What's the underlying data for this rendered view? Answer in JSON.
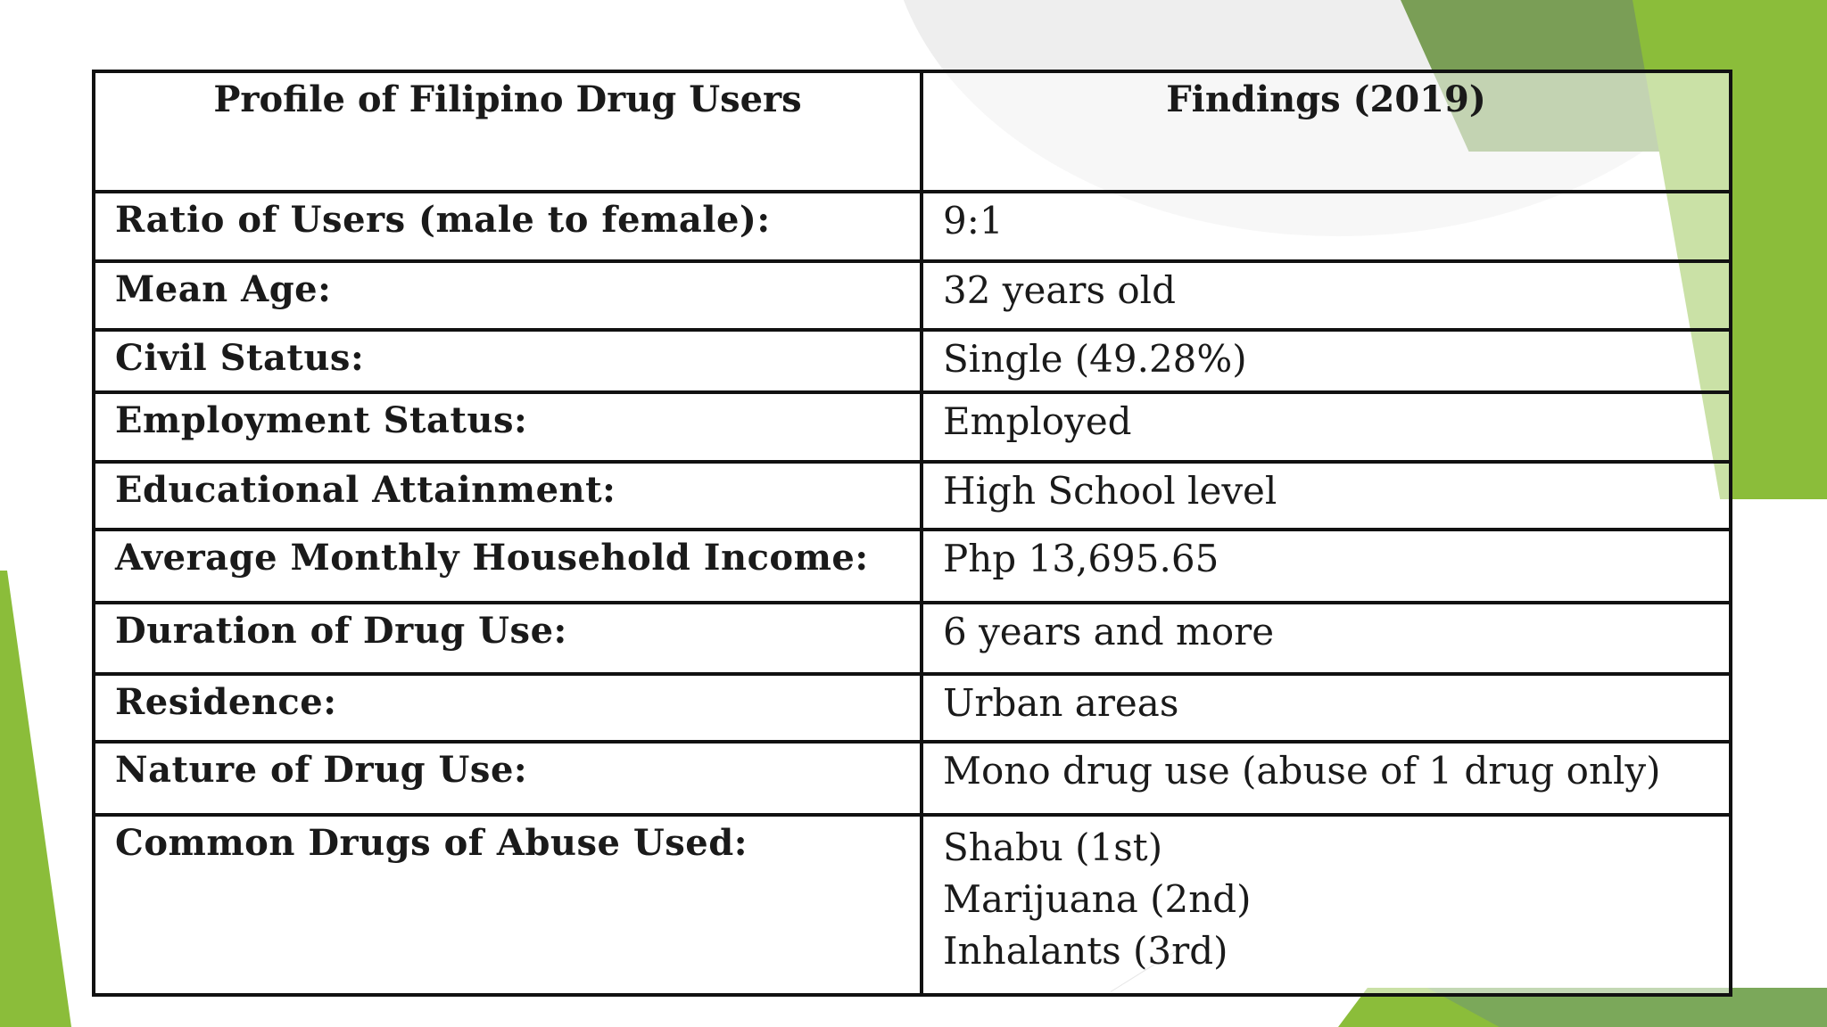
{
  "table": {
    "header": {
      "col1": "Profile of Filipino Drug Users",
      "col2": "Findings (2019)"
    },
    "rows": [
      {
        "label": "Ratio of Users (male to female):",
        "value": "9:1"
      },
      {
        "label": "Mean Age:",
        "value": "32 years old"
      },
      {
        "label": "Civil Status:",
        "value": "Single (49.28%)"
      },
      {
        "label": "Employment Status:",
        "value": "Employed"
      },
      {
        "label": "Educational Attainment:",
        "value": "High School level"
      },
      {
        "label": "Average Monthly Household Income:",
        "value": "Php 13,695.65"
      },
      {
        "label": "Duration of Drug Use:",
        "value": "6 years and more"
      },
      {
        "label": "Residence:",
        "value": "Urban areas"
      },
      {
        "label": "Nature of Drug Use:",
        "value": "Mono drug use (abuse of 1 drug only)"
      }
    ],
    "last_row": {
      "label": "Common Drugs of Abuse Used:",
      "values": [
        "Shabu (1st)",
        "Marijuana (2nd)",
        "Inhalants (3rd)"
      ]
    }
  },
  "theme": {
    "green_light": "#8bbd3a",
    "green_dark": "#7a9e56",
    "border": "#111111"
  }
}
